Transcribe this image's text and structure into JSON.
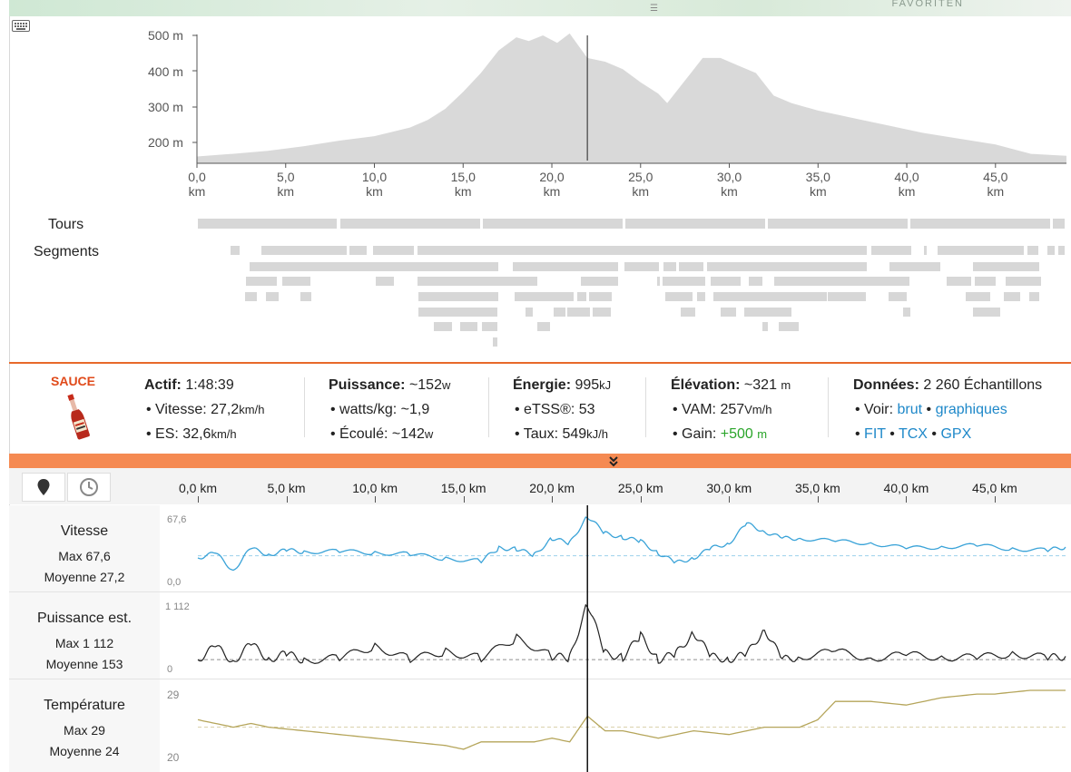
{
  "map": {
    "overlay_text": "FAVORITEN"
  },
  "elevation": {
    "y_ticks": [
      "500 m",
      "400 m",
      "300 m",
      "200 m"
    ],
    "x_ticks": [
      "0,0 km",
      "5,0 km",
      "10,0 km",
      "15,0 km",
      "20,0 km",
      "25,0 km",
      "30,0 km",
      "35,0 km",
      "40,0 km",
      "45,0 km"
    ],
    "cursor_km": 22.0
  },
  "laps": {
    "tours_label": "Tours",
    "segments_label": "Segments"
  },
  "sauce": {
    "brand": "SAUCE"
  },
  "stats": {
    "actif": {
      "title": "Actif:",
      "value": "1:48:39",
      "line1_label": "Vitesse:",
      "line1_value": "27,2",
      "line1_unit": "km/h",
      "line2_label": "ES:",
      "line2_value": "32,6",
      "line2_unit": "km/h"
    },
    "puissance": {
      "title": "Puissance:",
      "value": "~152",
      "unit": "w",
      "line1_label": "watts/kg:",
      "line1_value": "~1,9",
      "line2_label": "Écoulé:",
      "line2_value": "~142",
      "line2_unit": "w"
    },
    "energie": {
      "title": "Énergie:",
      "value": "995",
      "unit": "kJ",
      "line1_label": "eTSS®:",
      "line1_value": "53",
      "line2_label": "Taux:",
      "line2_value": "549",
      "line2_unit": "kJ/h"
    },
    "elevation": {
      "title": "Élévation:",
      "value": "~321",
      "unit": "m",
      "line1_label": "VAM:",
      "line1_value": "257",
      "line1_unit": "Vm/h",
      "line2_label": "Gain:",
      "line2_value": "+500",
      "line2_unit": "m"
    },
    "donnees": {
      "title": "Données:",
      "value": "2 260 Échantillons",
      "voir_label": "Voir:",
      "brut": "brut",
      "graphiques": "graphiques",
      "fit": "FIT",
      "tcx": "TCX",
      "gpx": "GPX"
    }
  },
  "charts_header": {
    "x_ticks": [
      "0,0 km",
      "5,0 km",
      "10,0 km",
      "15,0 km",
      "20,0 km",
      "25,0 km",
      "30,0 km",
      "35,0 km",
      "40,0 km",
      "45,0 km"
    ]
  },
  "channels": [
    {
      "name": "Vitesse",
      "max": "Max 67,6",
      "avg": "Moyenne 27,2",
      "ymax": "67,6",
      "ymin": "0,0",
      "color": "#3aa3d8"
    },
    {
      "name": "Puissance est.",
      "max": "Max 1 112",
      "avg": "Moyenne 153",
      "ymax": "1 112",
      "ymin": "0",
      "color": "#222222"
    },
    {
      "name": "Température",
      "max": "Max 29",
      "avg": "Moyenne 24",
      "ymax": "29",
      "ymin": "20",
      "color": "#b5a55a"
    }
  ],
  "chart_data": [
    {
      "type": "area",
      "title": "",
      "xlabel": "",
      "ylabel": "",
      "x_unit": "km",
      "y_unit": "m",
      "xlim": [
        0,
        49
      ],
      "ylim": [
        160,
        500
      ],
      "x": [
        0,
        2,
        4,
        6,
        8,
        10,
        12,
        13,
        14,
        15,
        16,
        17,
        18,
        18.7,
        19.5,
        20.3,
        21,
        22,
        23,
        24,
        25,
        26,
        26.5,
        27.5,
        28.5,
        29.5,
        30.5,
        31.5,
        32.5,
        33.5,
        35,
        37,
        39,
        41,
        43,
        45,
        47,
        49
      ],
      "values": [
        178,
        185,
        193,
        205,
        220,
        232,
        255,
        275,
        305,
        350,
        400,
        460,
        495,
        485,
        500,
        480,
        505,
        440,
        430,
        410,
        375,
        345,
        320,
        380,
        440,
        440,
        420,
        400,
        340,
        320,
        300,
        280,
        260,
        240,
        225,
        210,
        185,
        180
      ]
    },
    {
      "type": "line",
      "title": "",
      "name": "Vitesse",
      "ylim": [
        0,
        67.6
      ],
      "mean": 27.2,
      "x": [
        0,
        1,
        2,
        3,
        4,
        5,
        6,
        8,
        10,
        12,
        14,
        16,
        17,
        18,
        19,
        20,
        21,
        22,
        23,
        24,
        25,
        26,
        27,
        28,
        29,
        30,
        31,
        32,
        33,
        34,
        36,
        38,
        40,
        42,
        44,
        46,
        48,
        49
      ],
      "values": [
        25,
        30,
        12,
        35,
        28,
        33,
        31,
        32,
        30,
        29,
        24,
        22,
        35,
        34,
        28,
        45,
        40,
        67.6,
        50,
        46,
        42,
        30,
        20,
        25,
        35,
        40,
        60,
        52,
        45,
        45,
        42,
        40,
        35,
        36,
        38,
        34,
        33,
        36
      ]
    },
    {
      "type": "line",
      "title": "",
      "name": "Puissance est.",
      "ylim": [
        0,
        1112
      ],
      "mean": 153,
      "x": [
        0,
        1,
        2,
        3,
        4,
        5,
        6,
        8,
        10,
        12,
        14,
        16,
        18,
        20,
        21,
        22,
        23,
        24,
        25,
        26,
        27,
        28,
        29,
        30,
        31,
        32,
        33,
        34,
        36,
        38,
        40,
        42,
        44,
        46,
        48,
        49
      ],
      "values": [
        150,
        380,
        120,
        420,
        160,
        250,
        140,
        180,
        380,
        160,
        290,
        180,
        520,
        210,
        180,
        1112,
        260,
        190,
        560,
        150,
        250,
        620,
        200,
        160,
        240,
        680,
        150,
        200,
        290,
        180,
        230,
        200,
        180,
        260,
        180,
        210
      ]
    },
    {
      "type": "line",
      "title": "",
      "name": "Température",
      "ylim": [
        20,
        29
      ],
      "mean": 24,
      "x": [
        0,
        1,
        2,
        3,
        4,
        6,
        8,
        10,
        12,
        14,
        15,
        16,
        17,
        18,
        19,
        20,
        21,
        22,
        23,
        24,
        26,
        28,
        30,
        32,
        34,
        35,
        36,
        38,
        40,
        42,
        44,
        45,
        47,
        49
      ],
      "values": [
        25,
        24.5,
        24,
        24.5,
        24,
        23.5,
        23,
        22.5,
        22,
        21.5,
        21,
        22,
        22,
        22,
        22,
        22.5,
        22,
        25.5,
        23.5,
        23.5,
        22.5,
        23.5,
        23,
        24,
        24,
        25,
        27.5,
        27.5,
        27,
        28,
        28.5,
        28.5,
        29,
        29
      ]
    }
  ]
}
